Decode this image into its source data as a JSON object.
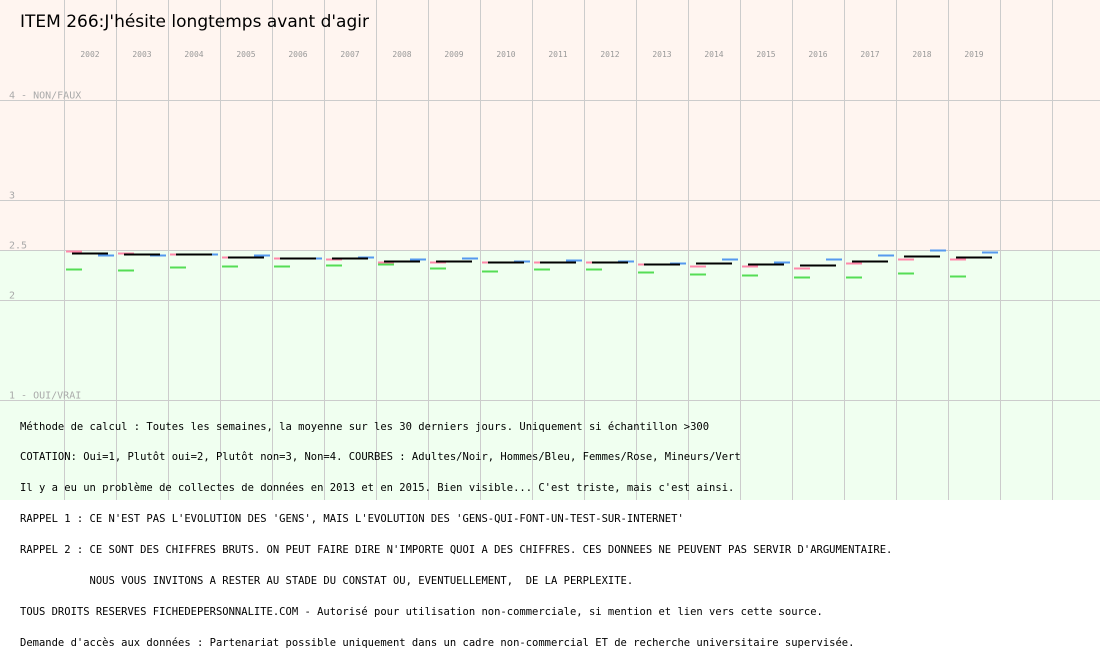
{
  "title": "ITEM 266:J'hésite longtemps avant d'agir",
  "chart_data": {
    "type": "line",
    "title": "ITEM 266:J'hésite longtemps avant d'agir",
    "xlabel": "",
    "ylabel": "",
    "categories": [
      "2002",
      "2003",
      "2004",
      "2005",
      "2006",
      "2007",
      "2008",
      "2009",
      "2010",
      "2011",
      "2012",
      "2013",
      "2014",
      "2015",
      "2016",
      "2017",
      "2018",
      "2019"
    ],
    "ylim": [
      1,
      4
    ],
    "y_ticks": [
      {
        "value": 4,
        "label": "4 - NON/FAUX"
      },
      {
        "value": 3,
        "label": "3"
      },
      {
        "value": 2.5,
        "label": "2.5"
      },
      {
        "value": 2,
        "label": "2"
      },
      {
        "value": 1,
        "label": "1 - OUI/VRAI"
      }
    ],
    "bands": [
      {
        "from": 2.5,
        "to": 4,
        "color": "#fff5f0"
      },
      {
        "from": 1,
        "to": 2.5,
        "color": "#f0fff0"
      }
    ],
    "grid": true,
    "series": [
      {
        "name": "Adultes",
        "color": "#000000",
        "values": [
          2.47,
          2.46,
          2.46,
          2.43,
          2.42,
          2.42,
          2.39,
          2.39,
          2.38,
          2.38,
          2.38,
          2.36,
          2.37,
          2.36,
          2.35,
          2.39,
          2.44,
          2.43
        ]
      },
      {
        "name": "Hommes",
        "color": "#5599ee",
        "values": [
          2.45,
          2.45,
          2.46,
          2.45,
          2.42,
          2.43,
          2.41,
          2.42,
          2.39,
          2.4,
          2.39,
          2.37,
          2.41,
          2.38,
          2.41,
          2.45,
          2.5,
          2.48
        ]
      },
      {
        "name": "Femmes",
        "color": "#ff88aa",
        "values": [
          2.49,
          2.47,
          2.46,
          2.43,
          2.42,
          2.41,
          2.38,
          2.38,
          2.38,
          2.38,
          2.38,
          2.36,
          2.34,
          2.34,
          2.32,
          2.37,
          2.41,
          2.41
        ]
      },
      {
        "name": "Mineurs",
        "color": "#55dd55",
        "values": [
          2.31,
          2.3,
          2.33,
          2.34,
          2.34,
          2.35,
          2.36,
          2.32,
          2.29,
          2.31,
          2.31,
          2.28,
          2.26,
          2.25,
          2.23,
          2.23,
          2.27,
          2.24
        ]
      }
    ]
  },
  "notes": [
    "Méthode de calcul : Toutes les semaines, la moyenne sur les 30 derniers jours. Uniquement si échantillon >300",
    "COTATION: Oui=1, Plutôt oui=2, Plutôt non=3, Non=4. COURBES : Adultes/Noir, Hommes/Bleu, Femmes/Rose, Mineurs/Vert",
    "Il y a eu un problème de collectes de données en 2013 et en 2015. Bien visible... C'est triste, mais c'est ainsi.",
    "RAPPEL 1 : CE N'EST PAS L'EVOLUTION DES 'GENS', MAIS L'EVOLUTION DES 'GENS-QUI-FONT-UN-TEST-SUR-INTERNET'",
    "RAPPEL 2 : CE SONT DES CHIFFRES BRUTS. ON PEUT FAIRE DIRE N'IMPORTE QUOI A DES CHIFFRES. CES DONNEES NE PEUVENT PAS SERVIR D'ARGUMENTAIRE.",
    "           NOUS VOUS INVITONS A RESTER AU STADE DU CONSTAT OU, EVENTUELLEMENT,  DE LA PERPLEXITE.",
    "TOUS DROITS RESERVES FICHEDEPERSONNALITE.COM - Autorisé pour utilisation non-commerciale, si mention et lien vers cette source.",
    "Demande d'accès aux données : Partenariat possible uniquement dans un cadre non-commercial ET de recherche universitaire supervisée."
  ]
}
